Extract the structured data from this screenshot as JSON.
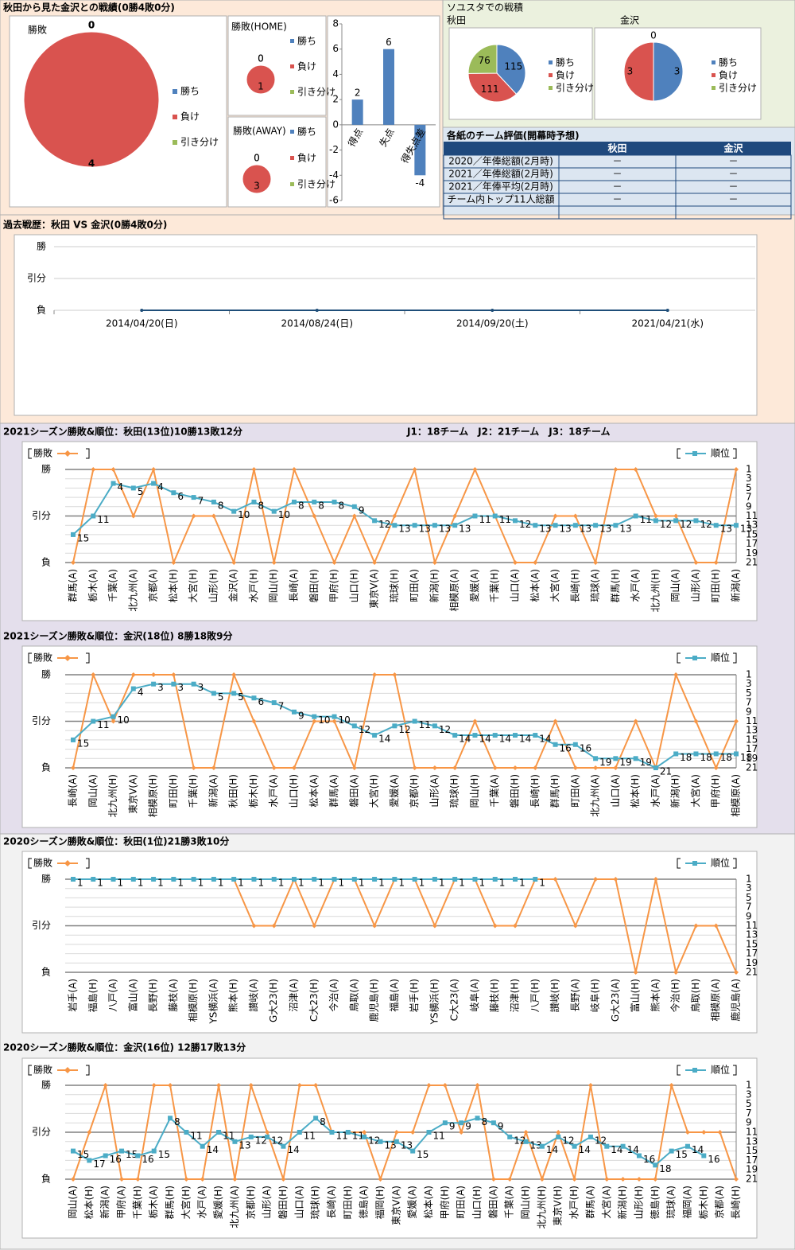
{
  "headings": {
    "record": "秋田から見た金沢との戦績(0勝4敗0分)",
    "stadium": "ソユスタでの戦積"
  },
  "table": {
    "title": "各紙のチーム評価(開幕時予想)",
    "columns": [
      "秋田",
      "金沢"
    ],
    "rows": [
      [
        "2020／年俸総額(2月時)",
        "－",
        "－"
      ],
      [
        "2021／年俸総額(2月時)",
        "－",
        "－"
      ],
      [
        "2021／年俸平均(2月時)",
        "－",
        "－"
      ],
      [
        "チーム内トップ11人総額",
        "－",
        "－"
      ]
    ]
  },
  "chart_data": [
    {
      "type": "pie",
      "title": "勝敗",
      "categories": [
        "勝ち",
        "負け",
        "引き分け"
      ],
      "values": [
        0,
        4,
        0
      ],
      "colors": [
        "#4f81bd",
        "#d9534f",
        "#9bbb59"
      ]
    },
    {
      "type": "pie",
      "title": "勝敗(HOME)",
      "categories": [
        "勝ち",
        "負け",
        "引き分け"
      ],
      "values": [
        0,
        1,
        0
      ],
      "colors": [
        "#4f81bd",
        "#d9534f",
        "#9bbb59"
      ]
    },
    {
      "type": "pie",
      "title": "勝敗(AWAY)",
      "categories": [
        "勝ち",
        "負け",
        "引き分け"
      ],
      "values": [
        0,
        3,
        0
      ],
      "colors": [
        "#4f81bd",
        "#d9534f",
        "#9bbb59"
      ]
    },
    {
      "type": "bar",
      "categories": [
        "得点",
        "失点",
        "得失点差"
      ],
      "values": [
        2,
        6,
        -4
      ],
      "color": "#4f81bd",
      "ylim": [
        -6,
        8
      ],
      "yticks": [
        -6,
        -4,
        -2,
        0,
        2,
        4,
        6,
        8
      ]
    },
    {
      "type": "pie",
      "title": "秋田",
      "categories": [
        "勝ち",
        "負け",
        "引き分け"
      ],
      "values": [
        115,
        111,
        76
      ],
      "colors": [
        "#4f81bd",
        "#d9534f",
        "#9bbb59"
      ]
    },
    {
      "type": "pie",
      "title": "金沢",
      "categories": [
        "勝ち",
        "負け",
        "引き分け"
      ],
      "values": [
        3,
        3,
        0
      ],
      "colors": [
        "#4f81bd",
        "#d9534f",
        "#9bbb59"
      ]
    },
    {
      "type": "history",
      "title": "過去戦歴：秋田 VS 金沢(0勝4敗0分)",
      "categories": [
        "2014/04/20(日)",
        "2014/08/24(日)",
        "2014/09/20(土)",
        "2021/04/21(水)"
      ],
      "values": [
        0,
        0,
        0,
        0
      ],
      "color": "#1f4e79",
      "ylim": [
        0,
        2
      ],
      "yticks": [
        {
          "value": 0,
          "label": "負"
        },
        {
          "value": 1,
          "label": "引分"
        },
        {
          "value": 2,
          "label": "勝"
        }
      ]
    },
    {
      "type": "season",
      "title": "2021シーズン勝敗&順位：秋田(13位)10勝13敗12分",
      "annotation": "J1：18チーム　J2：21チーム　J3：18チーム",
      "categories": [
        "群馬(A)",
        "栃木(A)",
        "千葉(A)",
        "北九州(A)",
        "京都(A)",
        "松本(H)",
        "大宮(H)",
        "山形(H)",
        "金沢(A)",
        "水戸(H)",
        "岡山(H)",
        "長崎(A)",
        "磐田(H)",
        "甲府(H)",
        "山口(H)",
        "東京V(A)",
        "琉球(H)",
        "町田(A)",
        "新潟(H)",
        "相模原(A)",
        "愛媛(A)",
        "千葉(H)",
        "山口(A)",
        "松本(A)",
        "大宮(A)",
        "長崎(H)",
        "琉球(A)",
        "群馬(H)",
        "水戸(A)",
        "北九州(H)",
        "岡山(A)",
        "山形(A)",
        "町田(H)",
        "新潟(A)"
      ],
      "series": [
        {
          "name": "勝敗",
          "color": "#f79646",
          "values": [
            0,
            2,
            2,
            1,
            2,
            0,
            1,
            1,
            0,
            2,
            0,
            2,
            1,
            0,
            1,
            0,
            1,
            2,
            0,
            1,
            2,
            1,
            0,
            0,
            1,
            1,
            0,
            2,
            2,
            1,
            1,
            0,
            0,
            2
          ]
        },
        {
          "name": "順位",
          "color": "#4bacc6",
          "axis": "y2",
          "values": [
            15,
            11,
            4,
            5,
            4,
            6,
            7,
            8,
            10,
            8,
            10,
            8,
            8,
            8,
            9,
            12,
            13,
            13,
            13,
            13,
            11,
            11,
            12,
            13,
            13,
            13,
            13,
            13,
            11,
            12,
            12,
            12,
            13,
            13
          ]
        }
      ],
      "ylim": [
        0,
        2
      ],
      "yticks": [
        {
          "value": 0,
          "label": "負"
        },
        {
          "value": 1,
          "label": "引分"
        },
        {
          "value": 2,
          "label": "勝"
        }
      ],
      "y2lim": [
        21,
        1
      ],
      "y2ticks": [
        1,
        3,
        5,
        7,
        9,
        11,
        13,
        15,
        17,
        19,
        21
      ]
    },
    {
      "type": "season",
      "title": "2021シーズン勝敗&順位：金沢(18位) 8勝18敗9分",
      "categories": [
        "長崎(A)",
        "岡山(A)",
        "北九州(H)",
        "東京V(A)",
        "相模原(H)",
        "町田(H)",
        "千葉(H)",
        "新潟(A)",
        "秋田(H)",
        "栃木(H)",
        "水戸(A)",
        "山口(H)",
        "松本(A)",
        "群馬(A)",
        "磐田(A)",
        "大宮(H)",
        "愛媛(A)",
        "京都(H)",
        "山形(A)",
        "琉球(H)",
        "岡山(H)",
        "千葉(A)",
        "磐田(H)",
        "長崎(H)",
        "群馬(H)",
        "町田(A)",
        "北九州(A)",
        "山口(A)",
        "松本(H)",
        "水戸(A)",
        "新潟(H)",
        "大宮(A)",
        "甲府(H)",
        "相模原(A)"
      ],
      "series": [
        {
          "name": "勝敗",
          "color": "#f79646",
          "values": [
            0,
            2,
            1,
            2,
            2,
            2,
            0,
            0,
            2,
            1,
            0,
            0,
            1,
            1,
            0,
            2,
            2,
            0,
            0,
            0,
            1,
            0,
            0,
            0,
            1,
            0,
            0,
            0,
            1,
            0,
            2,
            1,
            0,
            1
          ]
        },
        {
          "name": "順位",
          "color": "#4bacc6",
          "axis": "y2",
          "values": [
            15,
            11,
            10,
            4,
            3,
            3,
            3,
            5,
            5,
            6,
            7,
            9,
            10,
            10,
            12,
            14,
            12,
            11,
            12,
            14,
            14,
            14,
            14,
            14,
            16,
            16,
            19,
            19,
            19,
            21,
            18,
            18,
            18,
            18
          ]
        }
      ],
      "ylim": [
        0,
        2
      ],
      "yticks": [
        {
          "value": 0,
          "label": "負"
        },
        {
          "value": 1,
          "label": "引分"
        },
        {
          "value": 2,
          "label": "勝"
        }
      ],
      "y2lim": [
        21,
        1
      ],
      "y2ticks": [
        1,
        3,
        5,
        7,
        9,
        11,
        13,
        15,
        17,
        19,
        21
      ]
    },
    {
      "type": "season",
      "title": "2020シーズン勝敗&順位：秋田(1位)21勝3敗10分",
      "categories": [
        "岩手(A)",
        "福島(H)",
        "八戸(A)",
        "富山(A)",
        "長野(H)",
        "藤枝(A)",
        "相模原(H)",
        "YS横浜(A)",
        "熊本(H)",
        "讃岐(A)",
        "G大23(H)",
        "沼津(A)",
        "C大23(H)",
        "今治(A)",
        "鳥取(A)",
        "鹿児島(H)",
        "福島(A)",
        "岩手(H)",
        "YS横浜(H)",
        "C大23(A)",
        "岐阜(A)",
        "藤枝(H)",
        "沼津(H)",
        "八戸(H)",
        "讃岐(H)",
        "長野(A)",
        "岐阜(H)",
        "G大23(A)",
        "富山(H)",
        "熊本(A)",
        "今治(H)",
        "鳥取(H)",
        "相模原(A)",
        "鹿児島(A)"
      ],
      "series": [
        {
          "name": "勝敗",
          "color": "#f79646",
          "values": [
            2,
            2,
            2,
            2,
            2,
            2,
            2,
            2,
            2,
            1,
            1,
            2,
            1,
            2,
            2,
            1,
            2,
            2,
            1,
            2,
            2,
            1,
            1,
            2,
            2,
            1,
            2,
            2,
            0,
            2,
            0,
            1,
            1,
            0
          ]
        },
        {
          "name": "順位",
          "color": "#4bacc6",
          "axis": "y2",
          "values": [
            1,
            1,
            1,
            1,
            1,
            1,
            1,
            1,
            1,
            1,
            1,
            1,
            1,
            1,
            1,
            1,
            1,
            1,
            1,
            1,
            1,
            1,
            1,
            1,
            null,
            null,
            null,
            null,
            null,
            null,
            null,
            null,
            null,
            null
          ]
        }
      ],
      "ylim": [
        0,
        2
      ],
      "yticks": [
        {
          "value": 0,
          "label": "負"
        },
        {
          "value": 1,
          "label": "引分"
        },
        {
          "value": 2,
          "label": "勝"
        }
      ],
      "y2lim": [
        21,
        1
      ],
      "y2ticks": [
        1,
        3,
        5,
        7,
        9,
        11,
        13,
        15,
        17,
        19,
        21
      ]
    },
    {
      "type": "season",
      "title": "2020シーズン勝敗&順位：金沢(16位) 12勝17敗13分",
      "categories": [
        "岡山(A)",
        "松本(H)",
        "新潟(A)",
        "甲府(A)",
        "千葉(H)",
        "栃木(A)",
        "群馬(H)",
        "大宮(H)",
        "水戸(A)",
        "愛媛(H)",
        "北九州(A)",
        "京都(H)",
        "山形(A)",
        "磐田(H)",
        "山口(A)",
        "琉球(H)",
        "長崎(A)",
        "町田(H)",
        "徳島(A)",
        "福岡(H)",
        "東京V(A)",
        "愛媛(A)",
        "松本(A)",
        "甲府(H)",
        "町田(A)",
        "山口(H)",
        "磐田(A)",
        "千葉(A)",
        "岡山(H)",
        "北九州(H)",
        "東京V(H)",
        "水戸(H)",
        "群馬(A)",
        "大宮(A)",
        "新潟(H)",
        "山形(H)",
        "徳島(H)",
        "琉球(A)",
        "福岡(A)",
        "栃木(H)",
        "京都(A)",
        "長崎(H)"
      ],
      "series": [
        {
          "name": "勝敗",
          "color": "#f79646",
          "values": [
            0,
            1,
            2,
            0,
            0,
            2,
            2,
            0,
            0,
            2,
            0,
            2,
            1,
            0,
            2,
            2,
            1,
            1,
            1,
            0,
            1,
            1,
            2,
            2,
            1,
            2,
            0,
            0,
            1,
            0,
            1,
            0,
            2,
            0,
            0,
            0,
            0,
            2,
            1,
            1,
            1,
            0
          ]
        },
        {
          "name": "順位",
          "color": "#4bacc6",
          "axis": "y2",
          "values": [
            15,
            17,
            16,
            15,
            16,
            15,
            8,
            11,
            14,
            11,
            13,
            12,
            12,
            14,
            11,
            8,
            11,
            11,
            12,
            13,
            13,
            15,
            11,
            9,
            9,
            8,
            9,
            12,
            13,
            14,
            12,
            14,
            12,
            14,
            14,
            16,
            18,
            15,
            14,
            16,
            null,
            null
          ]
        }
      ],
      "ylim": [
        0,
        2
      ],
      "yticks": [
        {
          "value": 0,
          "label": "負"
        },
        {
          "value": 1,
          "label": "引分"
        },
        {
          "value": 2,
          "label": "勝"
        }
      ],
      "y2lim": [
        21,
        1
      ],
      "y2ticks": [
        1,
        3,
        5,
        7,
        9,
        11,
        13,
        15,
        17,
        19,
        21
      ]
    }
  ]
}
